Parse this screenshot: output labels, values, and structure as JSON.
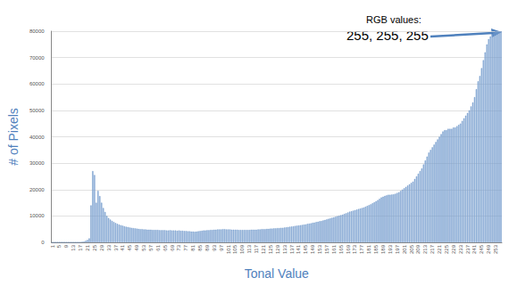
{
  "chart_data": {
    "type": "bar",
    "xlabel": "Tonal Value",
    "ylabel": "# of Pixels",
    "annotations": [
      "RGB values:",
      "255, 255, 255"
    ],
    "color": "#a7c0e3",
    "grid": true,
    "ylim": [
      0,
      80000
    ],
    "yticks": [
      0,
      10000,
      20000,
      30000,
      40000,
      50000,
      60000,
      70000,
      80000
    ],
    "categories": [
      1,
      null,
      null,
      null,
      5,
      null,
      null,
      null,
      9,
      null,
      null,
      null,
      13,
      null,
      null,
      null,
      17,
      null,
      null,
      null,
      21,
      null,
      null,
      null,
      25,
      null,
      null,
      null,
      29,
      null,
      null,
      null,
      33,
      null,
      null,
      null,
      37,
      null,
      null,
      null,
      41,
      null,
      null,
      null,
      45,
      null,
      null,
      null,
      49,
      null,
      null,
      null,
      53,
      null,
      null,
      null,
      57,
      null,
      null,
      null,
      61,
      null,
      null,
      null,
      65,
      null,
      null,
      null,
      69,
      null,
      null,
      null,
      73,
      null,
      null,
      null,
      77,
      null,
      null,
      null,
      81,
      null,
      null,
      null,
      85,
      null,
      null,
      null,
      89,
      null,
      null,
      null,
      93,
      null,
      null,
      null,
      97,
      null,
      null,
      null,
      101,
      null,
      null,
      null,
      105,
      null,
      null,
      null,
      109,
      null,
      null,
      null,
      113,
      null,
      null,
      null,
      117,
      null,
      null,
      null,
      121,
      null,
      null,
      null,
      125,
      null,
      null,
      null,
      129,
      null,
      null,
      null,
      133,
      null,
      null,
      null,
      137,
      null,
      null,
      null,
      141,
      null,
      null,
      null,
      145,
      null,
      null,
      null,
      149,
      null,
      null,
      null,
      153,
      null,
      null,
      null,
      157,
      null,
      null,
      null,
      161,
      null,
      null,
      null,
      165,
      null,
      null,
      null,
      169,
      null,
      null,
      null,
      173,
      null,
      null,
      null,
      177,
      null,
      null,
      null,
      181,
      null,
      null,
      null,
      185,
      null,
      null,
      null,
      189,
      null,
      null,
      null,
      193,
      null,
      null,
      null,
      197,
      null,
      null,
      null,
      201,
      null,
      null,
      null,
      205,
      null,
      null,
      null,
      209,
      null,
      null,
      null,
      213,
      null,
      null,
      null,
      217,
      null,
      null,
      null,
      221,
      null,
      null,
      null,
      225,
      null,
      null,
      null,
      229,
      null,
      null,
      null,
      233,
      null,
      null,
      null,
      237,
      null,
      null,
      null,
      241,
      null,
      null,
      null,
      245,
      null,
      null,
      null,
      249,
      null,
      null,
      null,
      253,
      null,
      null,
      null
    ],
    "values": [
      0,
      0,
      0,
      0,
      0,
      0,
      0,
      0,
      0,
      0,
      0,
      0,
      0,
      0,
      0,
      0,
      100,
      200,
      300,
      600,
      900,
      1500,
      14000,
      27000,
      25500,
      15000,
      19500,
      17500,
      15000,
      13000,
      11500,
      10000,
      9200,
      8600,
      8100,
      7700,
      7300,
      7000,
      6700,
      6500,
      6300,
      6100,
      5900,
      5800,
      5600,
      5500,
      5400,
      5300,
      5200,
      5100,
      5000,
      5000,
      4900,
      4900,
      4800,
      4800,
      4800,
      4700,
      4700,
      4700,
      4700,
      4600,
      4600,
      4600,
      4600,
      4500,
      4500,
      4600,
      4500,
      4500,
      4500,
      4400,
      4500,
      4400,
      4400,
      4300,
      4300,
      4200,
      4200,
      4100,
      4100,
      4000,
      4100,
      4200,
      4300,
      4400,
      4500,
      4500,
      4600,
      4600,
      4700,
      4700,
      4800,
      4800,
      4900,
      4900,
      4900,
      5000,
      5000,
      4900,
      4900,
      4900,
      4800,
      4800,
      4800,
      4800,
      4700,
      4700,
      4700,
      4700,
      4700,
      4700,
      4700,
      4800,
      4800,
      4800,
      4800,
      4900,
      4900,
      5000,
      5000,
      5000,
      5100,
      5100,
      5200,
      5200,
      5300,
      5300,
      5400,
      5400,
      5500,
      5500,
      5600,
      5700,
      5800,
      5900,
      6000,
      6100,
      6200,
      6300,
      6400,
      6500,
      6600,
      6700,
      6800,
      7000,
      7100,
      7200,
      7400,
      7500,
      7700,
      7800,
      8000,
      8100,
      8300,
      8500,
      8700,
      8900,
      9100,
      9300,
      9500,
      9700,
      9900,
      10100,
      10300,
      10500,
      10800,
      11000,
      11300,
      11600,
      11800,
      12000,
      12200,
      12400,
      12600,
      12800,
      13000,
      13200,
      13500,
      13800,
      14100,
      14400,
      14800,
      15200,
      15600,
      16000,
      16500,
      17000,
      17300,
      17600,
      17800,
      18000,
      18000,
      18100,
      18200,
      18400,
      18700,
      19000,
      19500,
      20000,
      20500,
      21000,
      21500,
      22000,
      22500,
      23000,
      24000,
      25000,
      26000,
      27000,
      28000,
      29500,
      31000,
      32500,
      34000,
      35000,
      36000,
      37000,
      38000,
      39000,
      40000,
      41000,
      42000,
      42500,
      42500,
      43000,
      43000,
      43000,
      43500,
      43500,
      44000,
      44500,
      45000,
      46000,
      47000,
      48000,
      49000,
      50000,
      51500,
      53000,
      55000,
      58000,
      61000,
      63000,
      66000,
      69000,
      72000,
      75000,
      77000,
      78000,
      79000,
      79500,
      80000,
      80000,
      80000,
      80000
    ]
  }
}
